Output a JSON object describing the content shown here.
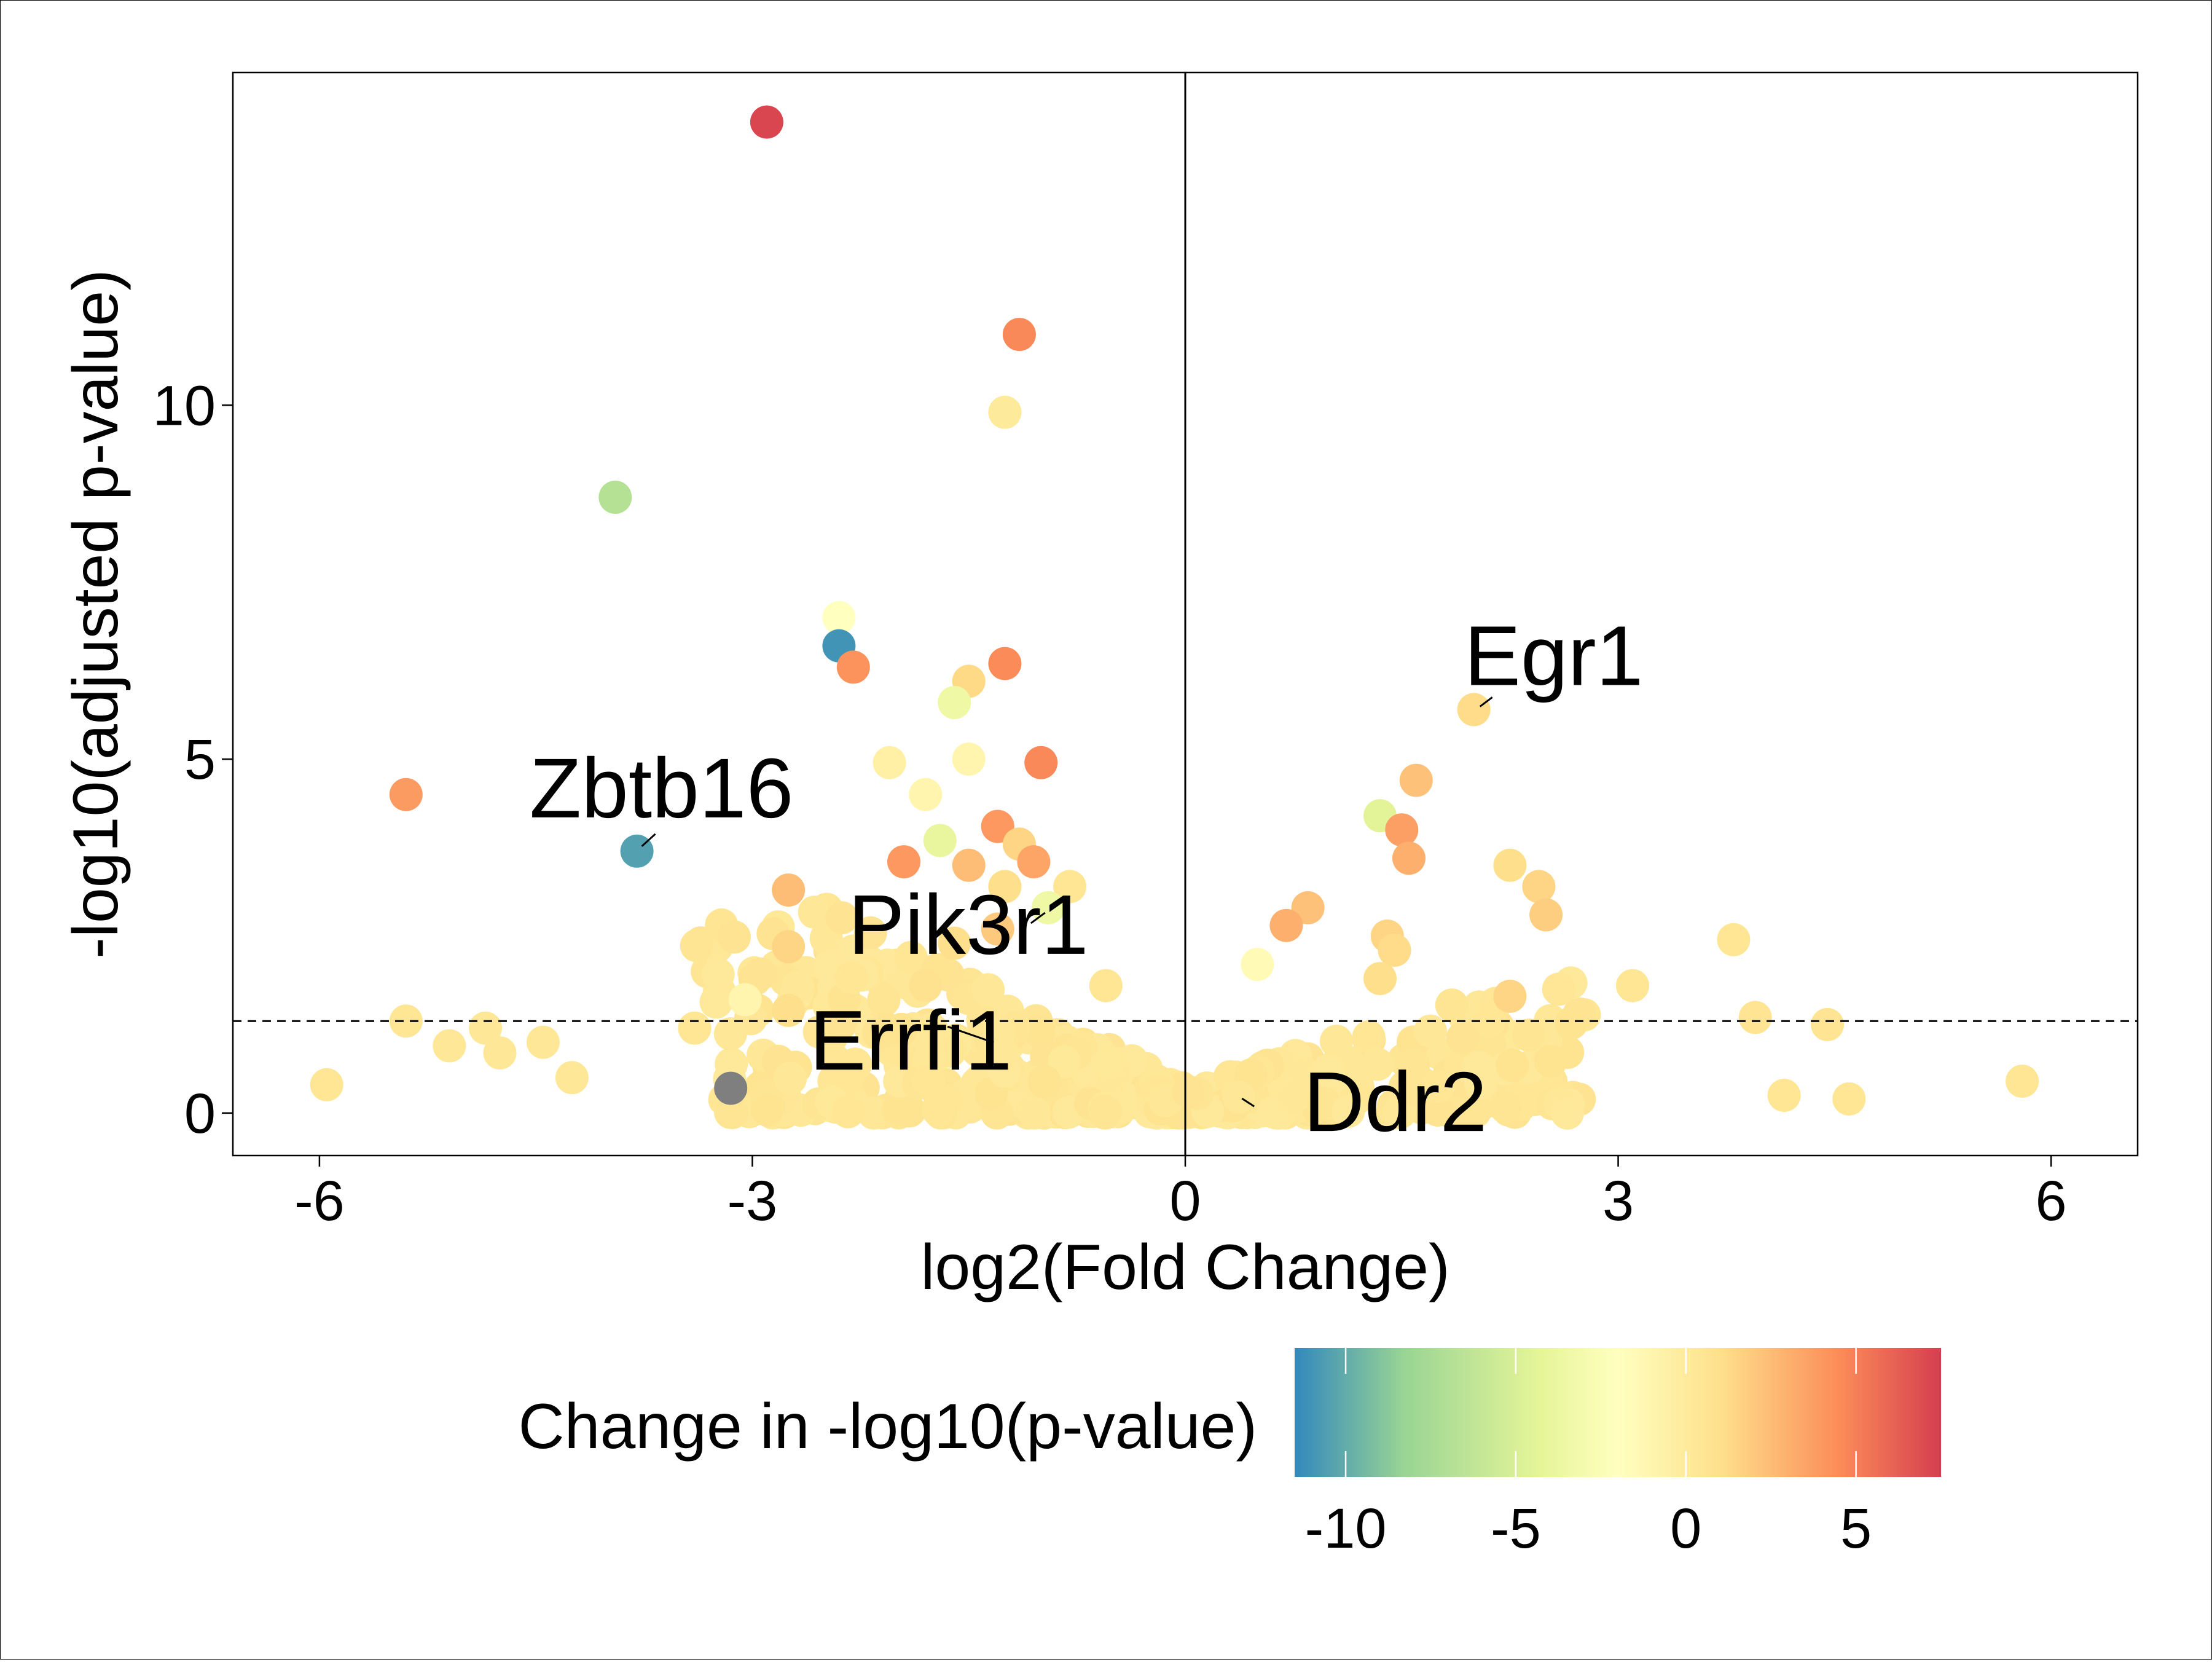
{
  "chart_data": {
    "type": "scatter",
    "title": "",
    "xlabel": "log2(Fold Change)",
    "ylabel": "-log10(adjusted p-value)",
    "xlim": [
      -6.6,
      6.6
    ],
    "ylim": [
      -0.6,
      14.7
    ],
    "x_ticks": [
      -6,
      -3,
      0,
      3,
      6
    ],
    "x_tick_labels": [
      "-6",
      "-3",
      "0",
      "3",
      "6"
    ],
    "y_ticks": [
      0,
      5,
      10
    ],
    "y_tick_labels": [
      "0",
      "5",
      "10"
    ],
    "grid": false,
    "vertical_line": {
      "x": 0,
      "style": "solid"
    },
    "threshold_line": {
      "y": 1.3,
      "style": "dashed"
    },
    "color_scale": {
      "title": "Change in -log10(p-value)",
      "min": -11.5,
      "max": 7.5,
      "ticks": [
        -10,
        -5,
        0,
        5
      ],
      "tick_labels": [
        "-10",
        "-5",
        "0",
        "5"
      ],
      "palette": [
        "#3288bd",
        "#99d594",
        "#e6f598",
        "#ffffbf",
        "#fee08b",
        "#fc8d59",
        "#d53e4f"
      ],
      "na_color": "#7f7f7f",
      "legend_position": "bottom"
    },
    "points": [
      {
        "x": -2.9,
        "y": 14.0,
        "c": 7.2
      },
      {
        "x": -1.15,
        "y": 11.0,
        "c": 4.6
      },
      {
        "x": -1.25,
        "y": 9.9,
        "c": 0.1
      },
      {
        "x": -3.95,
        "y": 8.7,
        "c": -6.8
      },
      {
        "x": -2.4,
        "y": 7.0,
        "c": -2.0
      },
      {
        "x": -2.4,
        "y": 6.6,
        "c": -11.0
      },
      {
        "x": -2.3,
        "y": 6.3,
        "c": 4.2
      },
      {
        "x": -1.25,
        "y": 6.35,
        "c": 4.5
      },
      {
        "x": -1.5,
        "y": 6.1,
        "c": 1.3
      },
      {
        "x": -1.6,
        "y": 5.8,
        "c": -3.5
      },
      {
        "x": -1.0,
        "y": 4.95,
        "c": 4.6
      },
      {
        "x": -1.5,
        "y": 5.0,
        "c": -1.0
      },
      {
        "x": -2.05,
        "y": 4.95,
        "c": -0.5
      },
      {
        "x": -1.8,
        "y": 4.5,
        "c": -1.0
      },
      {
        "x": -5.4,
        "y": 4.5,
        "c": 3.9
      },
      {
        "x": -3.8,
        "y": 3.7,
        "c": -10.5
      },
      {
        "x": -1.3,
        "y": 4.05,
        "c": 4.0
      },
      {
        "x": -1.7,
        "y": 3.85,
        "c": -4.0
      },
      {
        "x": -1.15,
        "y": 3.8,
        "c": 1.5
      },
      {
        "x": -1.95,
        "y": 3.55,
        "c": 4.0
      },
      {
        "x": -1.05,
        "y": 3.55,
        "c": 3.5
      },
      {
        "x": -1.5,
        "y": 3.5,
        "c": 2.5
      },
      {
        "x": -2.75,
        "y": 3.15,
        "c": 2.5
      },
      {
        "x": -1.25,
        "y": 3.2,
        "c": 1.0
      },
      {
        "x": -0.8,
        "y": 3.2,
        "c": 0.5
      },
      {
        "x": -0.95,
        "y": 2.9,
        "c": -3.5
      },
      {
        "x": -2.75,
        "y": 2.35,
        "c": 1.5
      },
      {
        "x": -1.3,
        "y": 2.6,
        "c": 2.0
      },
      {
        "x": -1.6,
        "y": 2.4,
        "c": 1.0
      },
      {
        "x": -2.75,
        "y": 1.45,
        "c": 1.0
      },
      {
        "x": -3.05,
        "y": 1.6,
        "c": -1.0
      },
      {
        "x": -0.55,
        "y": 1.8,
        "c": 0.5
      },
      {
        "x": -1.8,
        "y": 1.8,
        "c": 0.8
      },
      {
        "x": -5.4,
        "y": 1.3,
        "c": 0.5
      },
      {
        "x": -5.95,
        "y": 0.4,
        "c": 0.5
      },
      {
        "x": -5.1,
        "y": 0.95,
        "c": 0.4
      },
      {
        "x": -4.85,
        "y": 1.2,
        "c": 0.4
      },
      {
        "x": -4.75,
        "y": 0.85,
        "c": 0.4
      },
      {
        "x": -4.45,
        "y": 1.0,
        "c": 0.4
      },
      {
        "x": -4.25,
        "y": 0.5,
        "c": 0.4
      },
      {
        "x": -3.15,
        "y": 0.35,
        "c": null
      },
      {
        "x": -3.4,
        "y": 1.2,
        "c": 0.5
      },
      {
        "x": 0.85,
        "y": 2.9,
        "c": 2.3
      },
      {
        "x": 0.7,
        "y": 2.65,
        "c": 3.0
      },
      {
        "x": 0.5,
        "y": 2.1,
        "c": -1.5
      },
      {
        "x": 1.35,
        "y": 4.2,
        "c": -4.5
      },
      {
        "x": 1.6,
        "y": 4.7,
        "c": 2.3
      },
      {
        "x": 1.5,
        "y": 4.0,
        "c": 3.7
      },
      {
        "x": 1.55,
        "y": 3.6,
        "c": 3.0
      },
      {
        "x": 2.0,
        "y": 5.7,
        "c": 1.2
      },
      {
        "x": 2.25,
        "y": 3.5,
        "c": 1.0
      },
      {
        "x": 2.45,
        "y": 3.2,
        "c": 1.5
      },
      {
        "x": 2.5,
        "y": 2.8,
        "c": 1.8
      },
      {
        "x": 3.8,
        "y": 2.45,
        "c": 0.5
      },
      {
        "x": 3.1,
        "y": 1.8,
        "c": 0.5
      },
      {
        "x": 4.45,
        "y": 1.25,
        "c": 0.6
      },
      {
        "x": 3.95,
        "y": 1.35,
        "c": 0.6
      },
      {
        "x": 5.8,
        "y": 0.45,
        "c": 0.5
      },
      {
        "x": 4.6,
        "y": 0.2,
        "c": 0.5
      },
      {
        "x": 4.15,
        "y": 0.25,
        "c": 0.5
      },
      {
        "x": 1.4,
        "y": 2.5,
        "c": 1.5
      },
      {
        "x": 1.45,
        "y": 2.3,
        "c": 1.2
      },
      {
        "x": 1.35,
        "y": 1.9,
        "c": 1.0
      },
      {
        "x": 2.25,
        "y": 1.65,
        "c": 1.5
      }
    ],
    "labels": [
      {
        "text": "Zbtb16",
        "x": -3.8,
        "y": 3.7
      },
      {
        "text": "Pik3r1",
        "x": -0.95,
        "y": 2.9
      },
      {
        "text": "Errfi1",
        "x": -1.2,
        "y": 1.1
      },
      {
        "text": "Ddr2",
        "x": 0.35,
        "y": 0.25
      },
      {
        "text": "Egr1",
        "x": 2.0,
        "y": 5.7
      }
    ]
  }
}
